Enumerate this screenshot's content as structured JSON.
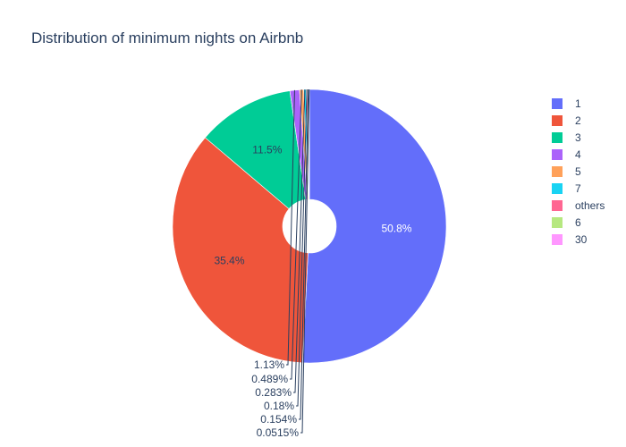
{
  "chart_data": {
    "type": "pie",
    "title": "Distribution of minimum nights on Airbnb",
    "hole": true,
    "legend_position": "right",
    "slices": [
      {
        "label": "1",
        "percent": 50.8,
        "percent_text": "50.8%",
        "color": "#636efa"
      },
      {
        "label": "2",
        "percent": 35.4,
        "percent_text": "35.4%",
        "color": "#ef553b"
      },
      {
        "label": "3",
        "percent": 11.5,
        "percent_text": "11.5%",
        "color": "#00cc96"
      },
      {
        "label": "4",
        "percent": 1.13,
        "percent_text": "1.13%",
        "color": "#ab63fa"
      },
      {
        "label": "5",
        "percent": 0.489,
        "percent_text": "0.489%",
        "color": "#ffa15a"
      },
      {
        "label": "7",
        "percent": 0.283,
        "percent_text": "0.283%",
        "color": "#19d3f3"
      },
      {
        "label": "others",
        "percent": 0.18,
        "percent_text": "0.18%",
        "color": "#ff6692"
      },
      {
        "label": "6",
        "percent": 0.154,
        "percent_text": "0.154%",
        "color": "#b6e880"
      },
      {
        "label": "30",
        "percent": 0.0515,
        "percent_text": "0.0515%",
        "color": "#ff97ff"
      }
    ]
  }
}
